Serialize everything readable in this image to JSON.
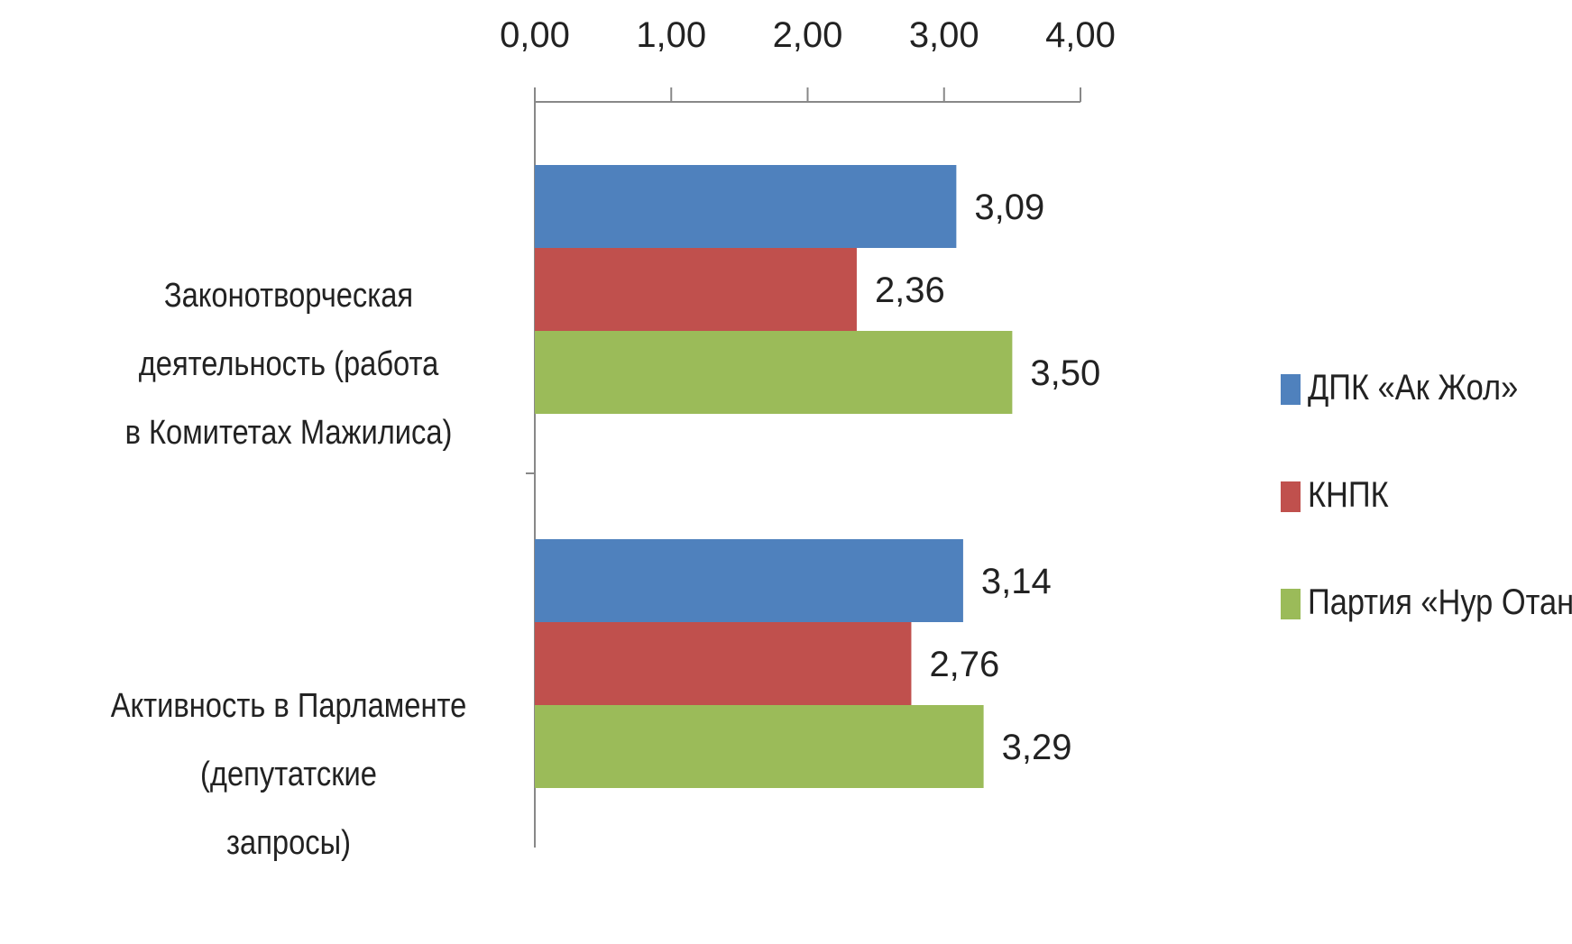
{
  "chart_data": {
    "type": "bar",
    "orientation": "horizontal",
    "categories": [
      "Законотворческая деятельность (работа в Комитетах Мажилиса)",
      "Активность в Парламенте (депутатские запросы)"
    ],
    "series": [
      {
        "name": "ДПК «Ак Жол»",
        "color": "#4F81BD",
        "values": [
          3.09,
          3.14
        ],
        "labels": [
          "3,09",
          "3,14"
        ]
      },
      {
        "name": "КНПК",
        "color": "#C0504D",
        "values": [
          2.36,
          2.76
        ],
        "labels": [
          "2,36",
          "2,76"
        ]
      },
      {
        "name": "Партия «Нур Отан»",
        "color": "#9BBB59",
        "values": [
          3.5,
          3.29
        ],
        "labels": [
          "3,50",
          "3,29"
        ]
      }
    ],
    "xlim": [
      0,
      4
    ],
    "xticks": [
      0,
      1,
      2,
      3,
      4
    ],
    "xtick_labels": [
      "0,00",
      "1,00",
      "2,00",
      "3,00",
      "4,00"
    ],
    "x_axis_position": "top",
    "legend_position": "right",
    "grid": false,
    "title": "",
    "xlabel": "",
    "ylabel": ""
  },
  "category_lines": [
    [
      "Законотворческая деятельность (работа",
      "в Комитетах Мажилиса)"
    ],
    [
      "Активность в Парламенте (депутатские",
      "запросы)"
    ]
  ]
}
